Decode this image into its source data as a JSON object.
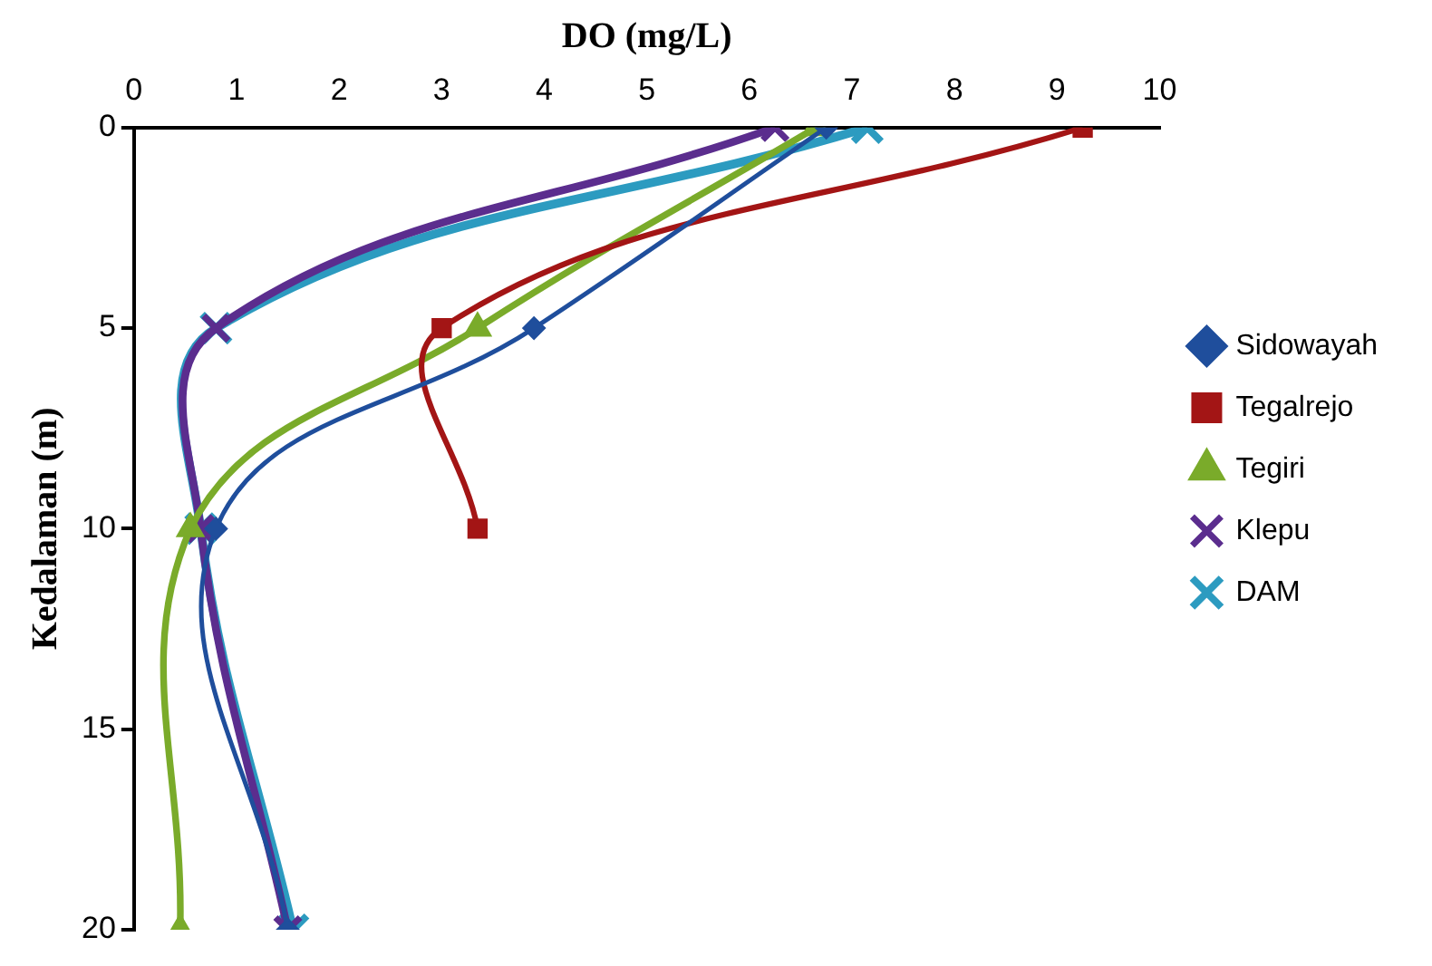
{
  "chart_data": {
    "type": "line",
    "xlabel": "DO (mg/L)",
    "ylabel": "Kedalaman (m)",
    "xlim": [
      0,
      10
    ],
    "xticks": [
      0,
      1,
      2,
      3,
      4,
      5,
      6,
      7,
      8,
      9,
      10
    ],
    "ylim": [
      20,
      0
    ],
    "yticks": [
      0,
      5,
      10,
      15,
      20
    ],
    "grid": false,
    "legend": "right",
    "series": [
      {
        "name": "Sidowayah",
        "color": "#1f4e9c",
        "marker": "diamond",
        "x": [
          6.75,
          3.9,
          0.8,
          1.5
        ],
        "values": [
          0,
          5,
          10,
          20
        ]
      },
      {
        "name": "Tegalrejo",
        "color": "#a31515",
        "marker": "square",
        "x": [
          9.25,
          3.0,
          3.35
        ],
        "values": [
          0,
          5,
          10
        ]
      },
      {
        "name": "Tegiri",
        "color": "#7aab2a",
        "marker": "triangle",
        "x": [
          6.65,
          3.35,
          0.55,
          0.45
        ],
        "values": [
          0,
          5,
          10,
          20
        ]
      },
      {
        "name": "Klepu",
        "color": "#5b2d8e",
        "marker": "cross",
        "x": [
          6.25,
          0.8,
          0.65,
          1.5
        ],
        "values": [
          0,
          5,
          10,
          20
        ]
      },
      {
        "name": "DAM",
        "color": "#2c9bc0",
        "marker": "cross",
        "x": [
          7.15,
          0.8,
          0.65,
          1.55
        ],
        "values": [
          0,
          5,
          10,
          20
        ]
      }
    ]
  }
}
